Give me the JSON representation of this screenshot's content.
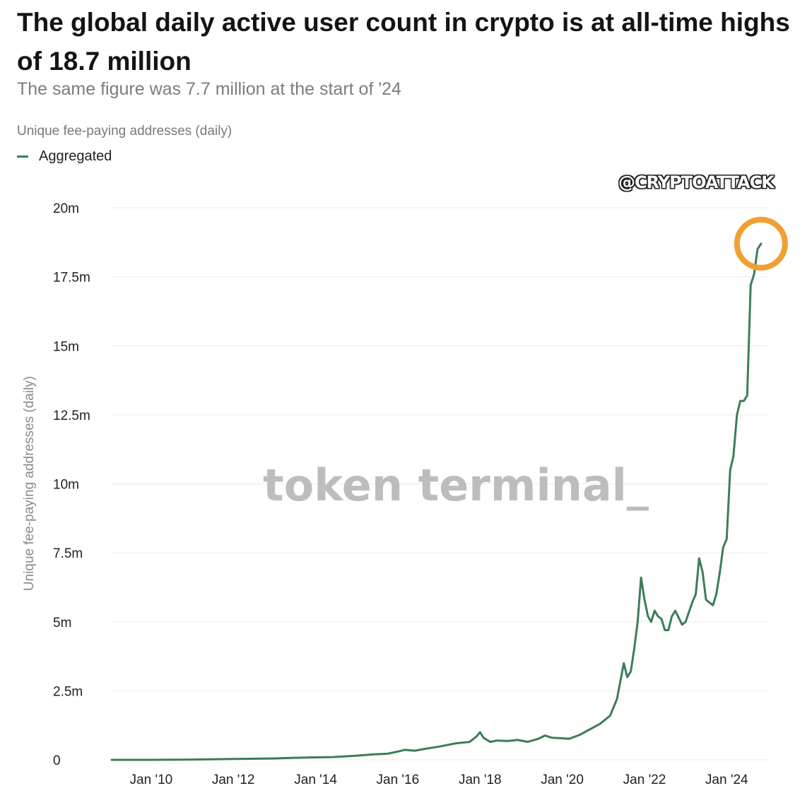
{
  "title": "The global daily active user count in crypto is at all-time highs of 18.7 million",
  "subtitle": "The same figure was 7.7 million at the start of '24",
  "series_caption": "Unique fee-paying addresses (daily)",
  "watermark": "@CRYPTOATTACK",
  "brand": "token terminal_",
  "colors": {
    "line": "#3c7d59",
    "highlight": "#f0a033",
    "grid": "#ececec"
  },
  "chart_data": {
    "type": "line",
    "ylabel": "Unique fee-paying addresses (daily)",
    "ylim": [
      0,
      20000000
    ],
    "xlim": [
      "2009-01-15",
      "2025-01-10"
    ],
    "grid": true,
    "legend_position": "top-left",
    "yticks": [
      {
        "value": 0,
        "label": "0"
      },
      {
        "value": 2500000,
        "label": "2.5m"
      },
      {
        "value": 5000000,
        "label": "5m"
      },
      {
        "value": 7500000,
        "label": "7.5m"
      },
      {
        "value": 10000000,
        "label": "10m"
      },
      {
        "value": 12500000,
        "label": "12.5m"
      },
      {
        "value": 15000000,
        "label": "15m"
      },
      {
        "value": 17500000,
        "label": "17.5m"
      },
      {
        "value": 20000000,
        "label": "20m"
      }
    ],
    "xticks": [
      {
        "date": "2010-01-01",
        "label": "Jan '10"
      },
      {
        "date": "2012-01-01",
        "label": "Jan '12"
      },
      {
        "date": "2014-01-01",
        "label": "Jan '14"
      },
      {
        "date": "2016-01-01",
        "label": "Jan '16"
      },
      {
        "date": "2018-01-01",
        "label": "Jan '18"
      },
      {
        "date": "2020-01-01",
        "label": "Jan '20"
      },
      {
        "date": "2022-01-01",
        "label": "Jan '22"
      },
      {
        "date": "2024-01-01",
        "label": "Jan '24"
      }
    ],
    "series": [
      {
        "name": "Aggregated",
        "points": [
          [
            "2009-01-15",
            0
          ],
          [
            "2010-01-01",
            0
          ],
          [
            "2011-01-01",
            10000
          ],
          [
            "2012-01-01",
            30000
          ],
          [
            "2013-01-01",
            50000
          ],
          [
            "2013-06-01",
            70000
          ],
          [
            "2014-01-01",
            90000
          ],
          [
            "2014-06-01",
            100000
          ],
          [
            "2015-01-01",
            150000
          ],
          [
            "2015-06-01",
            200000
          ],
          [
            "2015-10-01",
            220000
          ],
          [
            "2016-01-01",
            300000
          ],
          [
            "2016-03-01",
            360000
          ],
          [
            "2016-06-01",
            330000
          ],
          [
            "2016-09-01",
            400000
          ],
          [
            "2017-01-01",
            480000
          ],
          [
            "2017-06-01",
            600000
          ],
          [
            "2017-10-01",
            650000
          ],
          [
            "2017-12-01",
            850000
          ],
          [
            "2018-01-01",
            1000000
          ],
          [
            "2018-02-01",
            800000
          ],
          [
            "2018-04-01",
            650000
          ],
          [
            "2018-06-01",
            700000
          ],
          [
            "2018-09-01",
            680000
          ],
          [
            "2018-12-01",
            720000
          ],
          [
            "2019-03-01",
            650000
          ],
          [
            "2019-06-01",
            760000
          ],
          [
            "2019-08-01",
            880000
          ],
          [
            "2019-10-01",
            800000
          ],
          [
            "2020-01-01",
            780000
          ],
          [
            "2020-03-01",
            760000
          ],
          [
            "2020-06-01",
            900000
          ],
          [
            "2020-09-01",
            1100000
          ],
          [
            "2020-12-01",
            1300000
          ],
          [
            "2021-03-01",
            1600000
          ],
          [
            "2021-05-01",
            2200000
          ],
          [
            "2021-07-01",
            3500000
          ],
          [
            "2021-08-01",
            3000000
          ],
          [
            "2021-09-01",
            3200000
          ],
          [
            "2021-10-01",
            4000000
          ],
          [
            "2021-11-01",
            5000000
          ],
          [
            "2021-12-01",
            6600000
          ],
          [
            "2022-01-01",
            5800000
          ],
          [
            "2022-02-01",
            5200000
          ],
          [
            "2022-03-01",
            5000000
          ],
          [
            "2022-04-01",
            5400000
          ],
          [
            "2022-05-01",
            5200000
          ],
          [
            "2022-06-01",
            5100000
          ],
          [
            "2022-07-01",
            4700000
          ],
          [
            "2022-08-01",
            4700000
          ],
          [
            "2022-09-01",
            5200000
          ],
          [
            "2022-10-01",
            5400000
          ],
          [
            "2022-12-01",
            4900000
          ],
          [
            "2023-01-01",
            5000000
          ],
          [
            "2023-03-01",
            5700000
          ],
          [
            "2023-04-01",
            6000000
          ],
          [
            "2023-05-01",
            7300000
          ],
          [
            "2023-06-01",
            6800000
          ],
          [
            "2023-07-01",
            5800000
          ],
          [
            "2023-08-01",
            5700000
          ],
          [
            "2023-09-01",
            5600000
          ],
          [
            "2023-10-01",
            6000000
          ],
          [
            "2023-11-01",
            6800000
          ],
          [
            "2023-12-01",
            7700000
          ],
          [
            "2024-01-01",
            8000000
          ],
          [
            "2024-02-01",
            10500000
          ],
          [
            "2024-03-01",
            11000000
          ],
          [
            "2024-04-01",
            12500000
          ],
          [
            "2024-05-01",
            13000000
          ],
          [
            "2024-06-01",
            13000000
          ],
          [
            "2024-07-01",
            13200000
          ],
          [
            "2024-08-01",
            17200000
          ],
          [
            "2024-09-01",
            17600000
          ],
          [
            "2024-10-01",
            18500000
          ],
          [
            "2024-11-01",
            18700000
          ]
        ]
      }
    ],
    "annotations": [
      {
        "type": "circle",
        "date": "2024-11-01",
        "value": 18700000
      }
    ]
  }
}
